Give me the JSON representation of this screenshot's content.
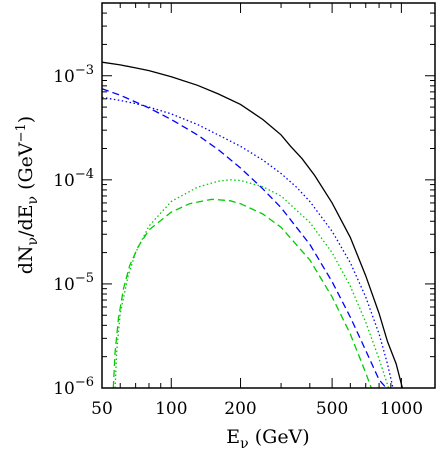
{
  "chart_data": {
    "type": "line",
    "xlabel": "E",
    "xlabel_sub": "ν",
    "xlabel_unit": " (GeV)",
    "ylabel": "dN",
    "ylabel_sub1": "ν",
    "ylabel_mid": "/dE",
    "ylabel_sub2": "ν",
    "ylabel_unit": " (GeV",
    "ylabel_unit_sup": "−1",
    "ylabel_unit_close": ")",
    "xscale": "log",
    "yscale": "log",
    "xlim": [
      50,
      1400
    ],
    "ylim": [
      1e-06,
      0.005
    ],
    "grid": false,
    "x_ticks": [
      {
        "value": 50,
        "label": "50"
      },
      {
        "value": 100,
        "label": "100"
      },
      {
        "value": 200,
        "label": "200"
      },
      {
        "value": 500,
        "label": "500"
      },
      {
        "value": 1000,
        "label": "1000"
      }
    ],
    "y_ticks": [
      {
        "value": 1e-06,
        "base": "10",
        "exp": "−6"
      },
      {
        "value": 1e-05,
        "base": "10",
        "exp": "−5"
      },
      {
        "value": 0.0001,
        "base": "10",
        "exp": "−4"
      },
      {
        "value": 0.001,
        "base": "10",
        "exp": "−3"
      }
    ],
    "series": [
      {
        "color": "#000000",
        "dash": "solid",
        "x": [
          50,
          60,
          70,
          80,
          100,
          130,
          160,
          200,
          250,
          300,
          330,
          370,
          420,
          500,
          600,
          700,
          800,
          870,
          950,
          1010
        ],
        "y": [
          0.00135,
          0.00127,
          0.00119,
          0.00112,
          0.00098,
          0.00081,
          0.00067,
          0.00053,
          0.00038,
          0.00027,
          0.00021,
          0.00016,
          0.00011,
          6e-05,
          2.8e-05,
          1.2e-05,
          5.2e-06,
          2.8e-06,
          1.7e-06,
          1e-06
        ]
      },
      {
        "color": "#0000ff",
        "dash": "dotted",
        "x": [
          50,
          60,
          70,
          80,
          100,
          130,
          160,
          200,
          250,
          300,
          350,
          400,
          500,
          600,
          700,
          800,
          870,
          920
        ],
        "y": [
          0.00062,
          0.00058,
          0.00054,
          0.0005,
          0.00043,
          0.00034,
          0.00027,
          0.00021,
          0.000155,
          0.000115,
          8.5e-05,
          6.2e-05,
          3.2e-05,
          1.6e-05,
          7.5e-06,
          3.3e-06,
          1.7e-06,
          1e-06
        ]
      },
      {
        "color": "#0000ff",
        "dash": "dashed",
        "x": [
          50,
          60,
          70,
          80,
          100,
          130,
          160,
          200,
          250,
          300,
          400,
          500,
          600,
          700,
          800,
          860
        ],
        "y": [
          0.00075,
          0.00065,
          0.00056,
          0.00049,
          0.00038,
          0.00027,
          0.000195,
          0.00013,
          8.2e-05,
          5.4e-05,
          2.4e-05,
          1.05e-05,
          4.8e-06,
          2.3e-06,
          1.2e-06,
          1e-06
        ]
      },
      {
        "color": "#00cc00",
        "dash": "dotted",
        "x": [
          57,
          58,
          60,
          65,
          70,
          80,
          100,
          130,
          160,
          180,
          200,
          250,
          300,
          400,
          500,
          600,
          700,
          800,
          880
        ],
        "y": [
          1e-06,
          2.3e-06,
          5.2e-06,
          1.2e-05,
          2e-05,
          3.6e-05,
          6.2e-05,
          8.5e-05,
          9.7e-05,
          0.0001,
          9.85e-05,
          8.6e-05,
          7e-05,
          3.9e-05,
          2e-05,
          9.5e-06,
          4.3e-06,
          1.9e-06,
          1e-06
        ]
      },
      {
        "color": "#00cc00",
        "dash": "dashed",
        "x": [
          56,
          57,
          59,
          62,
          66,
          72,
          80,
          100,
          120,
          150,
          180,
          200,
          250,
          300,
          400,
          500,
          600,
          700,
          740
        ],
        "y": [
          1e-06,
          2.2e-06,
          4.7e-06,
          9e-06,
          1.5e-05,
          2.3e-05,
          3.3e-05,
          4.9e-05,
          5.9e-05,
          6.5e-05,
          6.3e-05,
          5.9e-05,
          4.7e-05,
          3.5e-05,
          1.7e-05,
          7.5e-06,
          3.3e-06,
          1.4e-06,
          1e-06
        ]
      }
    ]
  }
}
